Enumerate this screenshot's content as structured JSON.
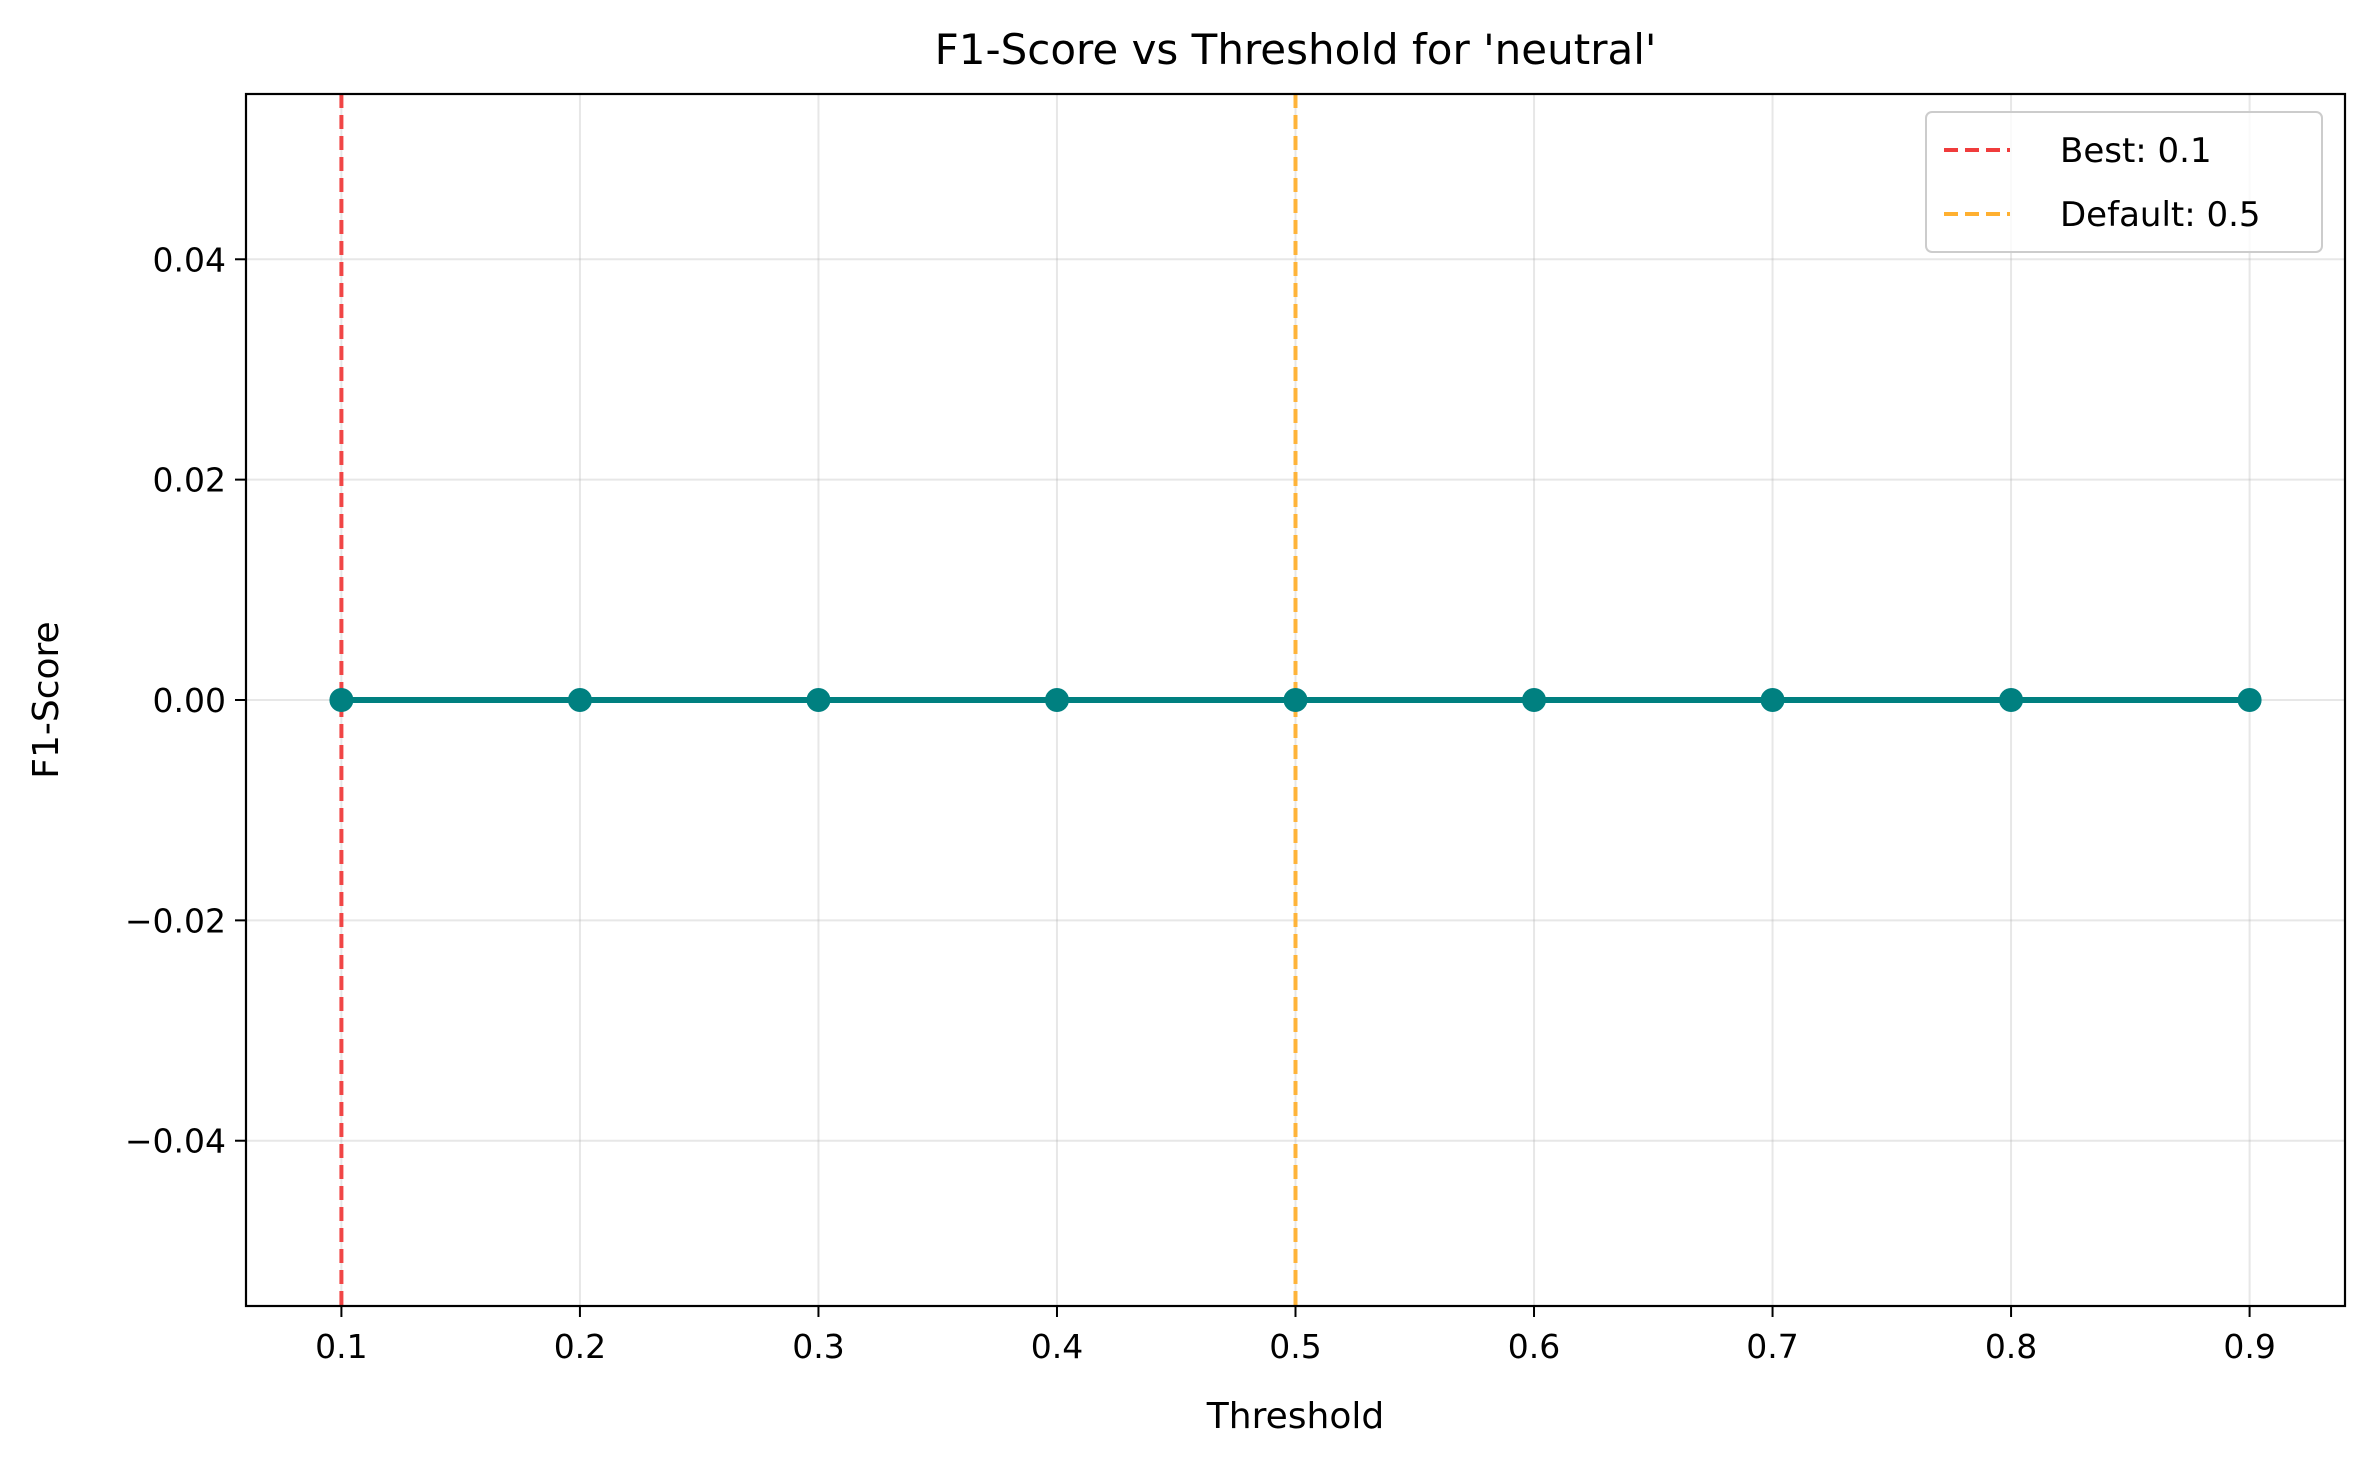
{
  "chart_data": {
    "type": "line",
    "title": "F1-Score vs Threshold for 'neutral'",
    "xlabel": "Threshold",
    "ylabel": "F1-Score",
    "x": [
      0.1,
      0.2,
      0.3,
      0.4,
      0.5,
      0.6,
      0.7,
      0.8,
      0.9
    ],
    "series": [
      {
        "values": [
          0,
          0,
          0,
          0,
          0,
          0,
          0,
          0,
          0
        ],
        "color": "#008080"
      }
    ],
    "xlim": [
      0.06,
      0.94
    ],
    "ylim": [
      -0.055,
      0.055
    ],
    "xticks": [
      0.1,
      0.2,
      0.3,
      0.4,
      0.5,
      0.6,
      0.7,
      0.8,
      0.9
    ],
    "xtick_labels": [
      "0.1",
      "0.2",
      "0.3",
      "0.4",
      "0.5",
      "0.6",
      "0.7",
      "0.8",
      "0.9"
    ],
    "yticks": [
      -0.04,
      -0.02,
      0.0,
      0.02,
      0.04
    ],
    "ytick_labels": [
      "−0.04",
      "−0.02",
      "0.00",
      "0.02",
      "0.04"
    ],
    "reference_lines": [
      {
        "x": 0.1,
        "label": "Best: 0.1",
        "color": "#f03c3c",
        "style": "dashed"
      },
      {
        "x": 0.5,
        "label": "Default: 0.5",
        "color": "#ffb030",
        "style": "dashed"
      }
    ],
    "grid": true,
    "legend_position": "top-right"
  }
}
